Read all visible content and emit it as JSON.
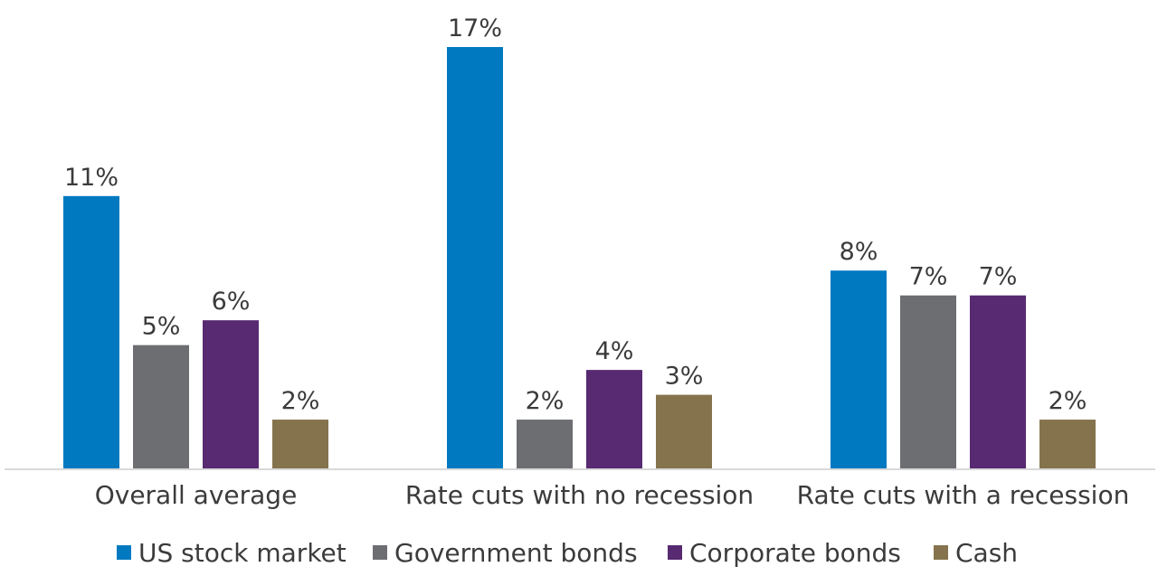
{
  "chart_data": {
    "type": "bar",
    "categories": [
      "Overall average",
      "Rate cuts with no recession",
      "Rate cuts with a recession"
    ],
    "series": [
      {
        "name": "US stock market",
        "values": [
          11,
          17,
          8
        ],
        "labels": [
          "11%",
          "17%",
          "8%"
        ],
        "color": "#0079C1"
      },
      {
        "name": "Government bonds",
        "values": [
          5,
          2,
          7
        ],
        "labels": [
          "5%",
          "2%",
          "7%"
        ],
        "color": "#6D6E71"
      },
      {
        "name": "Corporate bonds",
        "values": [
          6,
          4,
          7
        ],
        "labels": [
          "6%",
          "4%",
          "7%"
        ],
        "color": "#572A72"
      },
      {
        "name": "Cash",
        "values": [
          2,
          3,
          2
        ],
        "labels": [
          "2%",
          "3%",
          "2%"
        ],
        "color": "#85734D"
      }
    ],
    "ylim": [
      0,
      17
    ],
    "grid": false,
    "legend_position": "bottom",
    "axis_color": "#D9D9D9",
    "text_color": "#3B3B3B"
  }
}
